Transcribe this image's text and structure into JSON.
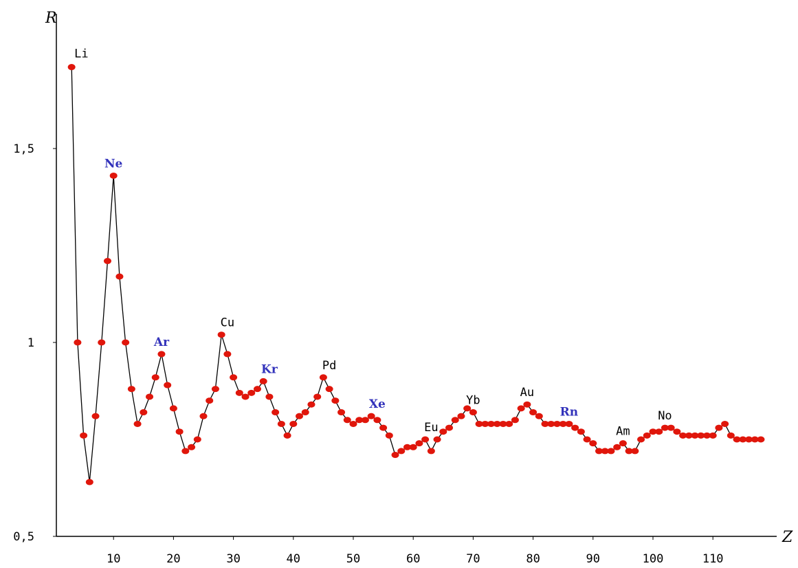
{
  "chart_data": {
    "type": "line",
    "xlabel": "Z",
    "ylabel": "R",
    "xlim": [
      0,
      120
    ],
    "ylim": [
      0.5,
      1.75
    ],
    "x_ticks": [
      10,
      20,
      30,
      40,
      50,
      60,
      70,
      80,
      90,
      100,
      110
    ],
    "x_tick_labels": [
      "10",
      "20",
      "30",
      "40",
      "50",
      "60",
      "70",
      "80",
      "90",
      "100",
      "110"
    ],
    "y_ticks": [
      0.5,
      1,
      1.5
    ],
    "y_tick_labels": [
      "0,5",
      "1",
      "1,5"
    ],
    "grid": false,
    "line_color": "#000000",
    "marker_color": "#e0160b",
    "series": [
      {
        "x": [
          3,
          4,
          5,
          6,
          7,
          8,
          9,
          10,
          11,
          12,
          13,
          14,
          15,
          16,
          17,
          18,
          19,
          20,
          21,
          22,
          23,
          24,
          25,
          26,
          27,
          28,
          29,
          30,
          31,
          32,
          33,
          34,
          35,
          36,
          37,
          38,
          39,
          40,
          41,
          42,
          43,
          44,
          45,
          46,
          47,
          48,
          49,
          50,
          51,
          52,
          53,
          54,
          55,
          56,
          57,
          58,
          59,
          60,
          61,
          62,
          63,
          64,
          65,
          66,
          67,
          68,
          69,
          70,
          71,
          72,
          73,
          74,
          75,
          76,
          77,
          78,
          79,
          80,
          81,
          82,
          83,
          84,
          85,
          86,
          87,
          88,
          89,
          90,
          91,
          92,
          93,
          94,
          95,
          96,
          97,
          98,
          99,
          100,
          101,
          102,
          103,
          104,
          105,
          106,
          107,
          108,
          109,
          110,
          111,
          112,
          113,
          114,
          115,
          116,
          117,
          118
        ],
        "y": [
          1.71,
          1.0,
          0.76,
          0.64,
          0.81,
          1.0,
          1.21,
          1.43,
          1.17,
          1.0,
          0.88,
          0.79,
          0.82,
          0.86,
          0.91,
          0.97,
          0.89,
          0.83,
          0.77,
          0.72,
          0.73,
          0.75,
          0.81,
          0.85,
          0.88,
          1.02,
          0.97,
          0.91,
          0.87,
          0.86,
          0.87,
          0.88,
          0.9,
          0.86,
          0.82,
          0.79,
          0.76,
          0.79,
          0.81,
          0.82,
          0.84,
          0.86,
          0.91,
          0.88,
          0.85,
          0.82,
          0.8,
          0.79,
          0.8,
          0.8,
          0.81,
          0.8,
          0.78,
          0.76,
          0.71,
          0.72,
          0.73,
          0.73,
          0.74,
          0.75,
          0.72,
          0.75,
          0.77,
          0.78,
          0.8,
          0.81,
          0.83,
          0.82,
          0.79,
          0.79,
          0.79,
          0.79,
          0.79,
          0.79,
          0.8,
          0.83,
          0.84,
          0.82,
          0.81,
          0.79,
          0.79,
          0.79,
          0.79,
          0.79,
          0.78,
          0.77,
          0.75,
          0.74,
          0.72,
          0.72,
          0.72,
          0.73,
          0.74,
          0.72,
          0.72,
          0.75,
          0.76,
          0.77,
          0.77,
          0.78,
          0.78,
          0.77,
          0.76,
          0.76,
          0.76,
          0.76,
          0.76,
          0.76,
          0.78,
          0.79,
          0.76,
          0.75,
          0.75,
          0.75,
          0.75,
          0.75
        ]
      }
    ],
    "annotations": [
      {
        "text": "Li",
        "x": 3,
        "y": 1.71,
        "color": "#000000",
        "bold": false
      },
      {
        "text": "Ne",
        "x": 10,
        "y": 1.43,
        "color": "#3333bb",
        "bold": true
      },
      {
        "text": "Ar",
        "x": 18,
        "y": 0.97,
        "color": "#3333bb",
        "bold": true
      },
      {
        "text": "Cu",
        "x": 29,
        "y": 1.02,
        "color": "#000000",
        "bold": false
      },
      {
        "text": "Kr",
        "x": 36,
        "y": 0.9,
        "color": "#3333bb",
        "bold": true
      },
      {
        "text": "Pd",
        "x": 46,
        "y": 0.91,
        "color": "#000000",
        "bold": false
      },
      {
        "text": "Xe",
        "x": 54,
        "y": 0.81,
        "color": "#3333bb",
        "bold": true
      },
      {
        "text": "Eu",
        "x": 63,
        "y": 0.75,
        "color": "#000000",
        "bold": false
      },
      {
        "text": "Yb",
        "x": 70,
        "y": 0.82,
        "color": "#000000",
        "bold": false
      },
      {
        "text": "Au",
        "x": 79,
        "y": 0.84,
        "color": "#000000",
        "bold": false
      },
      {
        "text": "Rn",
        "x": 86,
        "y": 0.79,
        "color": "#3333bb",
        "bold": true
      },
      {
        "text": "Am",
        "x": 95,
        "y": 0.74,
        "color": "#000000",
        "bold": false
      },
      {
        "text": "No",
        "x": 102,
        "y": 0.78,
        "color": "#000000",
        "bold": false
      }
    ]
  }
}
